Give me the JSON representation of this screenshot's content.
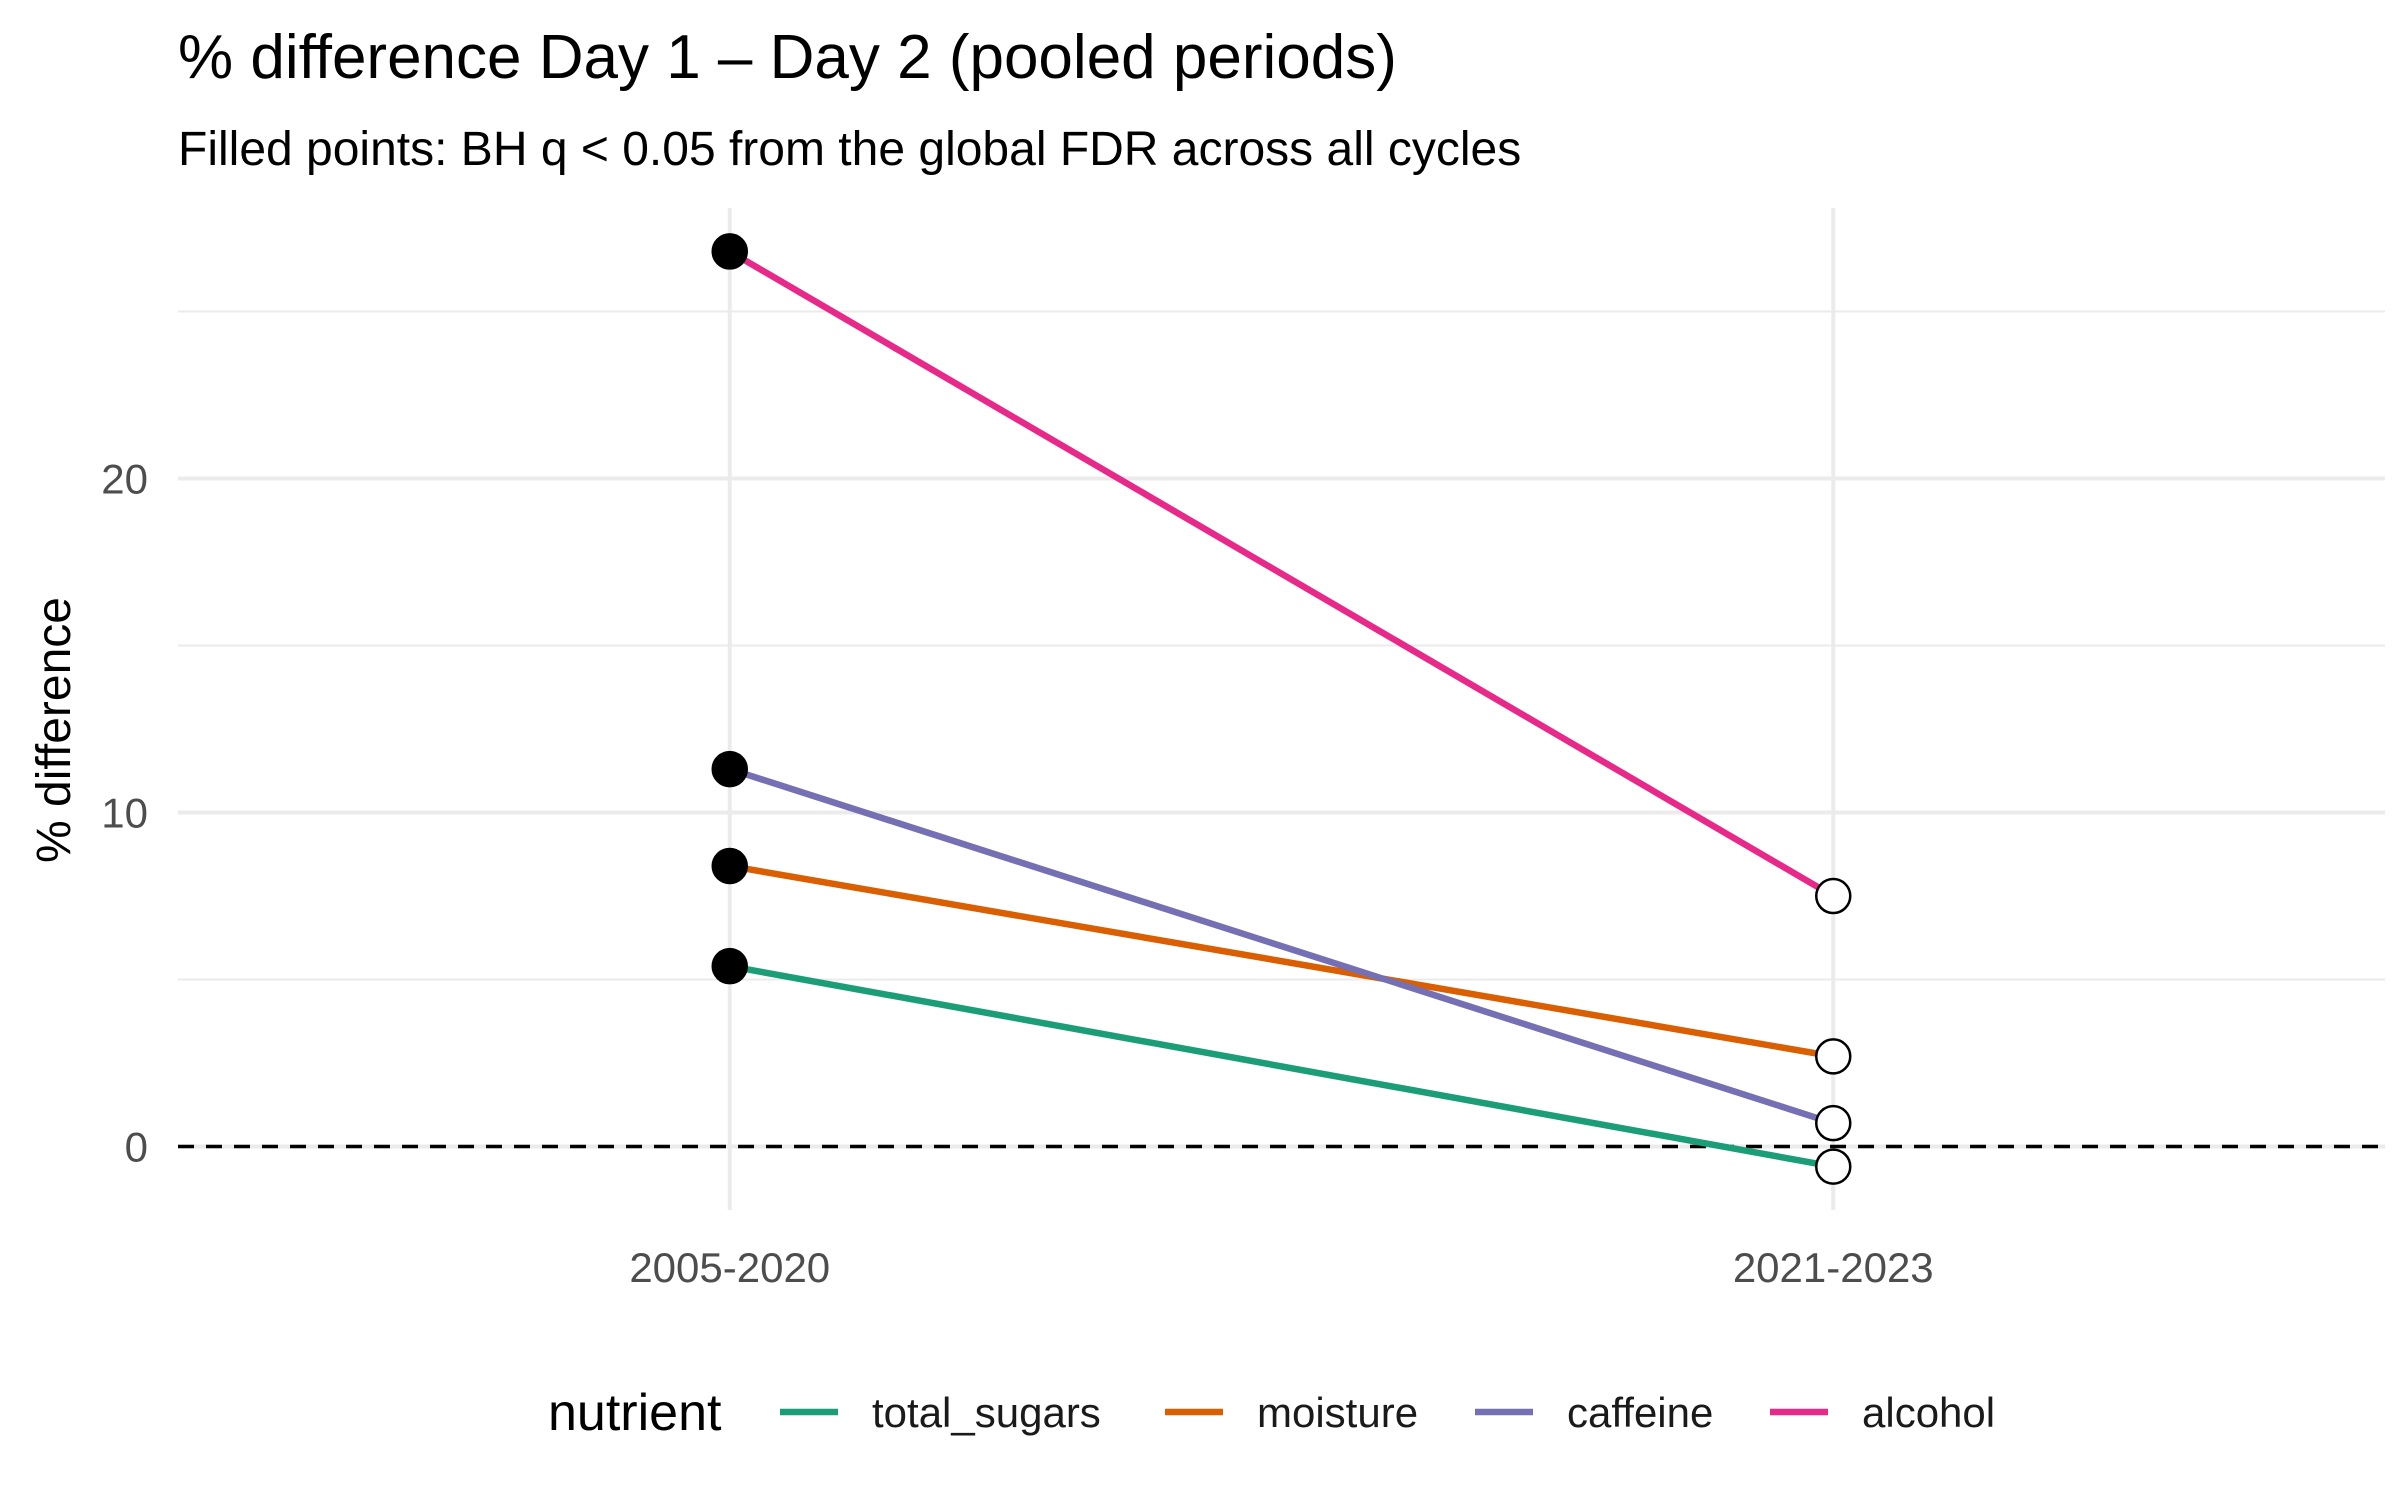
{
  "chart_data": {
    "type": "line",
    "title": "% difference Day 1 – Day 2 (pooled periods)",
    "subtitle": "Filled points: BH q < 0.05 from the global FDR across all cycles",
    "xlabel": "",
    "ylabel": "% difference",
    "categories": [
      "2005-2020",
      "2021-2023"
    ],
    "ylim": [
      -1.9,
      28.1
    ],
    "y_ticks": [
      0,
      10,
      20
    ],
    "y_minor_ticks": [
      5,
      15,
      25
    ],
    "grid": true,
    "reference_line": {
      "y": 0,
      "style": "dashed"
    },
    "legend": {
      "title": "nutrient",
      "position": "bottom"
    },
    "series": [
      {
        "name": "total_sugars",
        "color": "#1b9e77",
        "values": [
          5.4,
          -0.6
        ],
        "significant": [
          true,
          false
        ]
      },
      {
        "name": "moisture",
        "color": "#d95f02",
        "values": [
          8.4,
          2.7
        ],
        "significant": [
          true,
          false
        ]
      },
      {
        "name": "caffeine",
        "color": "#7570b3",
        "values": [
          11.3,
          0.7
        ],
        "significant": [
          true,
          false
        ]
      },
      {
        "name": "alcohol",
        "color": "#e7298a",
        "values": [
          26.8,
          7.5
        ],
        "significant": [
          true,
          false
        ]
      }
    ]
  }
}
